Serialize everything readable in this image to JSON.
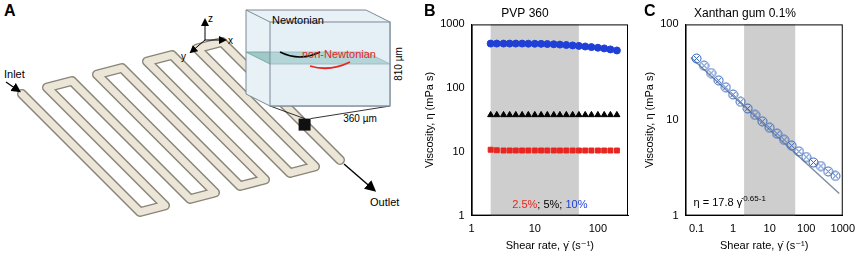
{
  "diagram": {
    "panel_label": "A",
    "inlet": "Inlet",
    "outlet": "Outlet",
    "newtonian": "Newtonian",
    "non_newtonian": "non-Newtonian",
    "height_label": "810 µm",
    "width_label": "360 µm",
    "axis_labels": [
      "x",
      "y",
      "z"
    ]
  },
  "chart_data": [
    {
      "panel_label": "B",
      "type": "scatter",
      "title": "PVP 360",
      "x_label": "Shear rate, γ̇ (s⁻¹)",
      "y_label": "Viscosity, η (mPa s)",
      "log": true,
      "grid": false,
      "xlim": [
        1,
        300
      ],
      "ylim": [
        1,
        1000
      ],
      "xticks": [
        1,
        10,
        100
      ],
      "yticks": [
        1,
        10,
        100,
        1000
      ],
      "highlight_x": [
        2,
        50
      ],
      "legend": "bottom",
      "legend_separator": "; ",
      "x": [
        2.0,
        2.5,
        3.2,
        4.0,
        5.0,
        6.3,
        7.9,
        10,
        12.6,
        15.8,
        20,
        25,
        31.6,
        39.8,
        50,
        63,
        79,
        100,
        126,
        158,
        200
      ],
      "series": [
        {
          "name": "2.5%",
          "color": "#e8251f",
          "marker": "square",
          "values": [
            10.8,
            10.6,
            10.5,
            10.5,
            10.5,
            10.5,
            10.5,
            10.5,
            10.5,
            10.5,
            10.5,
            10.5,
            10.5,
            10.5,
            10.5,
            10.5,
            10.5,
            10.5,
            10.5,
            10.5,
            10.5
          ]
        },
        {
          "name": "5%",
          "color": "#000000",
          "marker": "triangle",
          "values": [
            38,
            38,
            38,
            38,
            38,
            38,
            38,
            38,
            38,
            38,
            38,
            38,
            38,
            38,
            38,
            38,
            38,
            38,
            38,
            38,
            38
          ]
        },
        {
          "name": "10%",
          "color": "#1f3fd6",
          "marker": "circle",
          "values": [
            500,
            500,
            500,
            500,
            500,
            500,
            498,
            497,
            495,
            492,
            488,
            482,
            475,
            468,
            460,
            450,
            440,
            430,
            420,
            405,
            390
          ]
        }
      ]
    },
    {
      "panel_label": "C",
      "type": "scatter",
      "title": "Xanthan gum 0.1%",
      "x_label": "Shear rate, γ̇ (s⁻¹)",
      "y_label": "Viscosity, η (mPa s)",
      "log": true,
      "grid": false,
      "xlim": [
        0.05,
        1000
      ],
      "ylim": [
        1,
        100
      ],
      "xticks": [
        0.1,
        1,
        10,
        100,
        1000
      ],
      "yticks": [
        1,
        10,
        100
      ],
      "highlight_x": [
        2,
        50
      ],
      "annotations": [
        {
          "text": "η = 17.8 γ̇",
          "exponent": "0.65-1"
        }
      ],
      "series": [
        {
          "type": "scatter",
          "color": "#2f5fb8",
          "marker": "crossed_circle",
          "x": [
            0.1,
            0.16,
            0.25,
            0.4,
            0.63,
            1,
            1.6,
            2.5,
            4,
            6.3,
            10,
            16,
            25,
            40,
            63,
            100,
            158,
            251,
            398,
            631
          ],
          "values": [
            44,
            37,
            31,
            26,
            22,
            18.5,
            15.5,
            13.2,
            11.3,
            9.7,
            8.3,
            7.2,
            6.2,
            5.4,
            4.7,
            4.1,
            3.6,
            3.3,
            2.9,
            2.6
          ]
        },
        {
          "type": "line",
          "color": "#7f8fa6",
          "marker": "none",
          "x": [
            0.07,
            800
          ],
          "values": [
            45,
            1.7
          ]
        }
      ]
    }
  ]
}
